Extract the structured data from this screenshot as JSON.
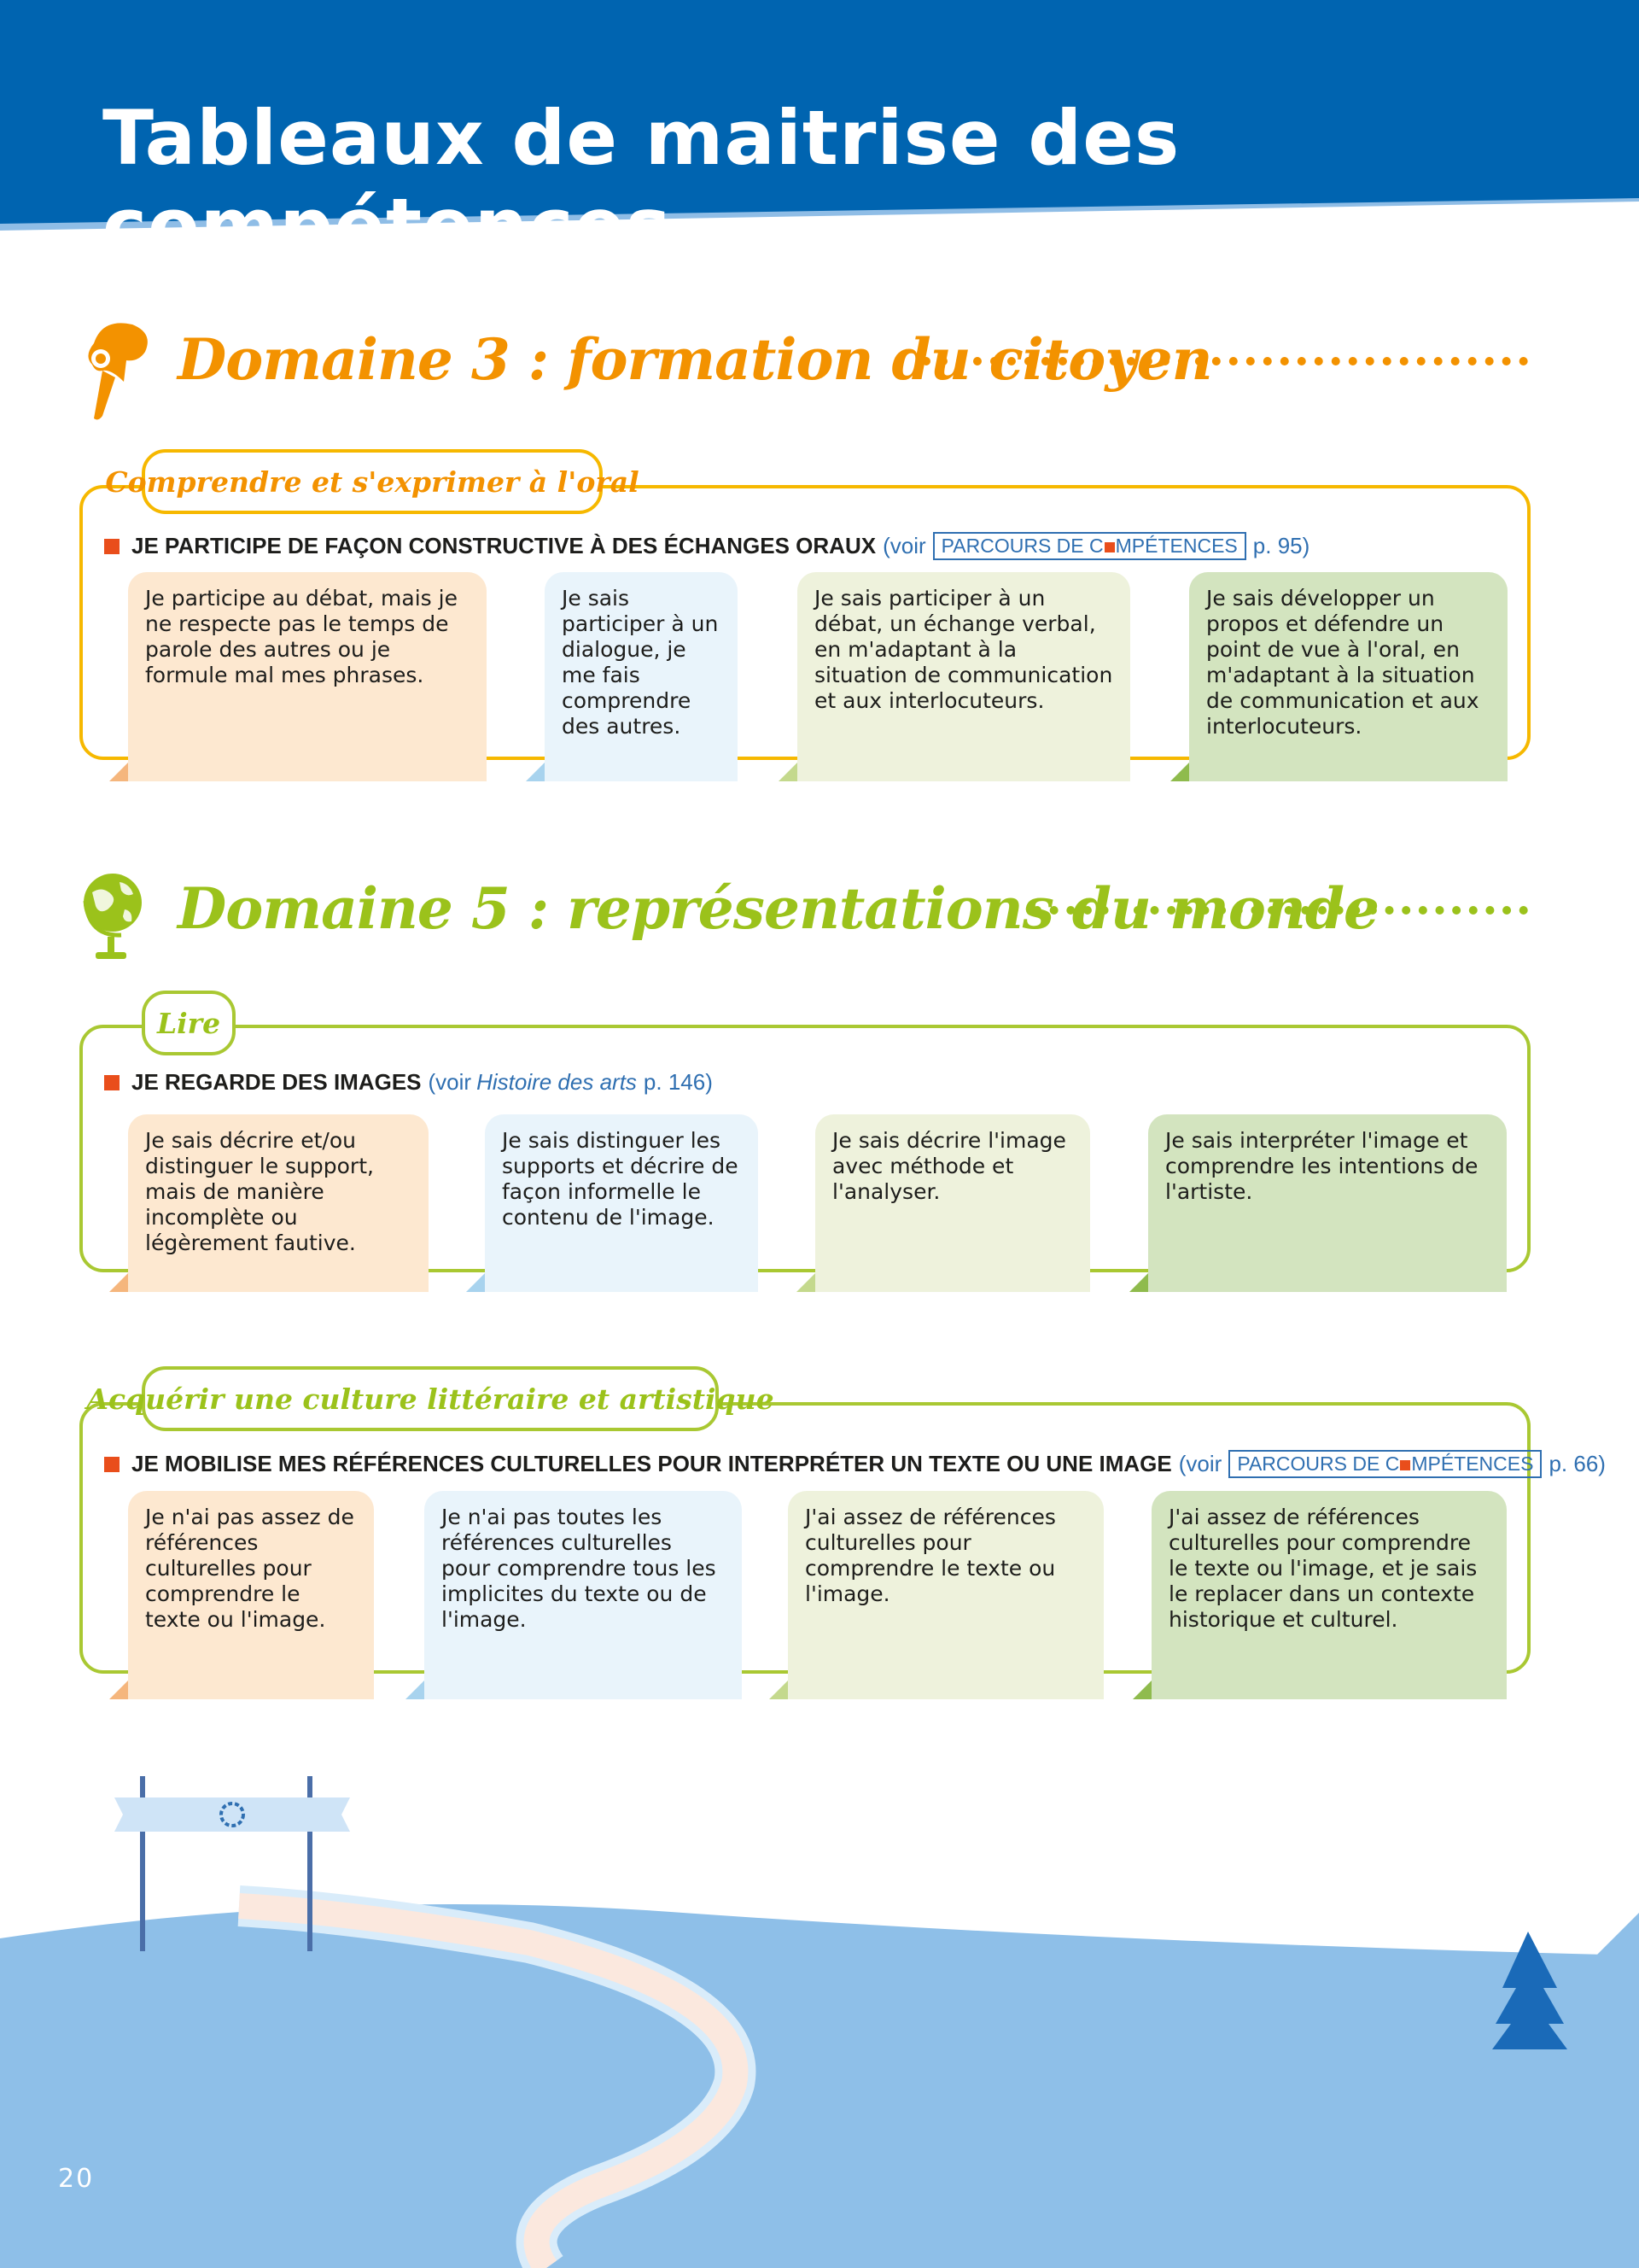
{
  "page": {
    "title": "Tableaux de maitrise des compétences",
    "page_number": "20"
  },
  "domain3": {
    "title": "Domaine 3 : formation du citoyen",
    "icon": "speech-head-icon",
    "color": "#f39200",
    "section": {
      "tab": "Comprendre et s'exprimer à l'oral",
      "criterion": "JE PARTICIPE DE FAÇON CONSTRUCTIVE À DES ÉCHANGES ORAUX",
      "ref_prefix": "(voir",
      "ref_box_a": "PARCOURS DE C",
      "ref_box_b": "MPÉTENCES",
      "ref_suffix": "p. 95)",
      "levels": [
        "Je participe au débat, mais je ne respecte pas le temps de parole des autres ou je formule mal mes phrases.",
        "Je sais participer à un dialogue, je me fais comprendre des autres.",
        "Je sais participer à un débat, un échange verbal, en m'adaptant à la situation de communication et aux interlocuteurs.",
        "Je sais développer un propos et défendre un point de vue à l'oral, en m'adaptant à la situation de communication et aux interlocuteurs."
      ]
    }
  },
  "domain5": {
    "title": "Domaine 5 : représentations du monde",
    "icon": "globe-icon",
    "color": "#9bc21b",
    "section_lire": {
      "tab": "Lire",
      "criterion": "JE REGARDE DES IMAGES",
      "ref_prefix": "(voir",
      "ref_italic": "Histoire des arts",
      "ref_suffix": "p. 146)",
      "levels": [
        "Je sais décrire et/ou distinguer le support, mais de manière incomplète ou légèrement fautive.",
        "Je sais distinguer les supports et décrire de façon informelle le contenu de l'image.",
        "Je sais décrire l'image avec méthode et l'analyser.",
        "Je sais interpréter l'image et comprendre les intentions de l'artiste."
      ]
    },
    "section_culture": {
      "tab": "Acquérir une culture littéraire et artistique",
      "criterion": "JE MOBILISE MES RÉFÉRENCES CULTURELLES POUR INTERPRÉTER UN TEXTE OU UNE IMAGE",
      "ref_prefix": "(voir",
      "ref_box_a": "PARCOURS DE C",
      "ref_box_b": "MPÉTENCES",
      "ref_suffix": "p. 66)",
      "levels": [
        "Je n'ai pas assez de références culturelles pour comprendre le texte ou l'image.",
        "Je n'ai pas toutes les références culturelles pour comprendre tous les implicites du texte ou de l'image.",
        "J'ai assez de références culturelles pour comprendre le texte ou l'image.",
        "J'ai assez de références culturelles pour comprendre le texte ou l'image, et je sais le replacer dans un contexte historique et culturel."
      ]
    }
  },
  "colors": {
    "header_blue": "#0064b0",
    "level_1": "#fde8d0",
    "level_2": "#e9f4fb",
    "level_3": "#eef2dc",
    "level_4": "#d3e4bf"
  }
}
